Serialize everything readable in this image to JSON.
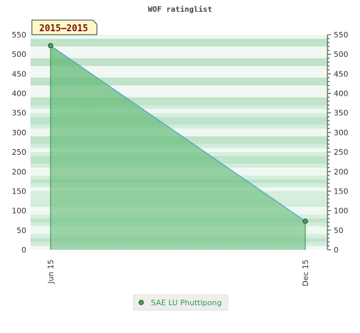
{
  "chart_data": {
    "type": "area",
    "title": "WOF ratinglist",
    "badge": "2015–2015",
    "x_ticks": [
      "Jun 15",
      "Dec 15"
    ],
    "series": [
      {
        "name": "SAE LU Phuttipong",
        "color": "#2e8b40",
        "points": [
          {
            "x": "Jun 15",
            "y": 522
          },
          {
            "x": "Dec 15",
            "y": 73
          }
        ]
      }
    ],
    "ylim": [
      0,
      550
    ],
    "y_ticks": [
      0,
      50,
      100,
      150,
      200,
      250,
      300,
      350,
      400,
      450,
      500,
      550
    ],
    "y_axis_right": true,
    "grid": true,
    "legend_position": "bottom-center"
  }
}
